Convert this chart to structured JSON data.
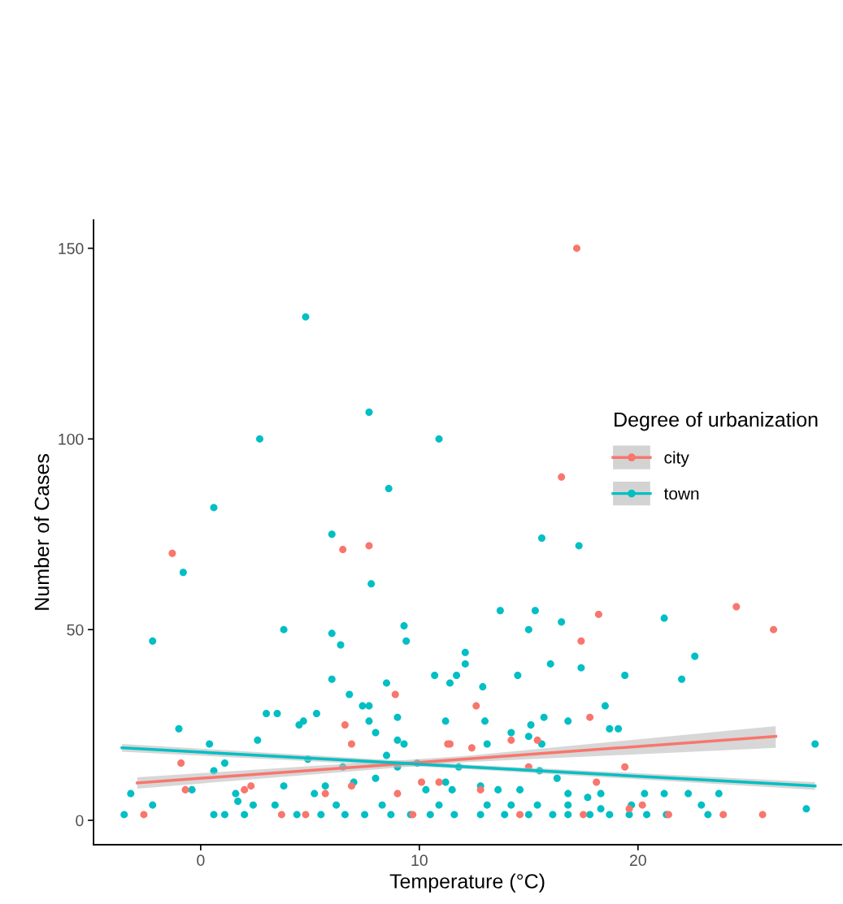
{
  "chart_data": {
    "type": "scatter",
    "xlabel": "Temperature (°C)",
    "ylabel": "Number of Cases",
    "legend_title": "Degree of urbanization",
    "legend": "right",
    "grid": false,
    "xlim": [
      -4.9,
      29.3
    ],
    "ylim": [
      -6.4,
      157.4
    ],
    "xticks": [
      0,
      10,
      20
    ],
    "yticks": [
      0,
      50,
      100,
      150
    ],
    "series": [
      {
        "name": "city",
        "marker": "circle",
        "color": "#f8766d",
        "x": [
          17.2,
          16.5,
          -1.3,
          6.5,
          7.7,
          24.5,
          26.2,
          18.2,
          17.4,
          8.9,
          12.6,
          17.8,
          6.6,
          6.9,
          11.3,
          11.4,
          15.4,
          14.2,
          12.4,
          19.4,
          -0.9,
          -0.7,
          2.0,
          2.3,
          6.9,
          5.7,
          9.0,
          10.1,
          10.9,
          12.8,
          15.0,
          18.1,
          21.4,
          23.9,
          25.7,
          -2.6,
          3.7,
          4.8,
          9.7,
          14.6,
          17.5,
          19.6,
          20.2
        ],
        "values": [
          150,
          90,
          70,
          71,
          72,
          56,
          50,
          54,
          47,
          33,
          30,
          27,
          25,
          20,
          20,
          20,
          21,
          21,
          19,
          14,
          15,
          8,
          8,
          9,
          9,
          7,
          7,
          10,
          10,
          8,
          14,
          10,
          1.5,
          1.5,
          1.5,
          1.5,
          1.5,
          1.5,
          1.5,
          1.5,
          1.5,
          3,
          4
        ]
      },
      {
        "name": "town",
        "marker": "circle",
        "color": "#00bfc4",
        "x": [
          4.8,
          7.7,
          10.9,
          2.7,
          8.6,
          0.6,
          6.0,
          7.8,
          -0.8,
          -2.2,
          3.8,
          9.3,
          9.4,
          6.0,
          6.4,
          15.6,
          17.3,
          13.7,
          15.3,
          15.0,
          16.5,
          21.2,
          22.6,
          16.0,
          17.4,
          12.1,
          12.1,
          6.0,
          22.0,
          19.4,
          10.7,
          11.7,
          11.4,
          12.9,
          14.5,
          8.5,
          6.8,
          3.0,
          3.5,
          5.3,
          4.7,
          7.4,
          7.7,
          7.7,
          8.0,
          11.2,
          13.0,
          16.8,
          15.7,
          18.5,
          15.1,
          13.1,
          19.1,
          18.7,
          9.0,
          2.6,
          0.4,
          -1.0,
          4.5,
          28.1,
          14.2,
          15.6,
          15.0,
          9.0,
          9.3,
          8.5,
          11.8,
          6.5,
          4.9,
          1.1,
          0.6,
          -3.2,
          -0.4,
          1.6,
          -2.2,
          -3.5,
          27.7,
          22.9,
          22.3,
          23.7,
          23.2,
          21.2,
          20.3,
          20.4,
          19.7,
          18.3,
          18.3,
          17.7,
          16.8,
          16.3,
          15.5,
          14.6,
          13.6,
          12.8,
          11.5,
          11.2,
          10.3,
          9.9,
          9.0,
          8.0,
          7.0,
          5.7,
          5.2,
          3.8,
          3.4,
          2.4,
          1.7,
          1.1,
          0.6,
          2.0,
          4.4,
          5.5,
          6.6,
          7.5,
          8.7,
          9.6,
          10.5,
          11.6,
          12.8,
          13.9,
          15.0,
          16.1,
          16.8,
          17.8,
          18.7,
          19.6,
          21.3,
          6.2,
          8.3,
          10.9,
          13.1,
          14.2,
          15.4,
          16.8
        ],
        "values": [
          132,
          107,
          100,
          100,
          87,
          82,
          75,
          62,
          65,
          47,
          50,
          51,
          47,
          49,
          46,
          74,
          72,
          55,
          55,
          50,
          52,
          53,
          43,
          41,
          40,
          44,
          41,
          37,
          37,
          38,
          38,
          38,
          36,
          35,
          38,
          36,
          33,
          28,
          28,
          28,
          26,
          30,
          30,
          26,
          23,
          26,
          26,
          26,
          27,
          30,
          25,
          20,
          24,
          24,
          27,
          21,
          20,
          24,
          25,
          20,
          23,
          20,
          22,
          21,
          20,
          17,
          14,
          14,
          16,
          15,
          13,
          7,
          8,
          7,
          4,
          1.5,
          3,
          4,
          7,
          7,
          1.5,
          7,
          7,
          1.5,
          4,
          7,
          3,
          6,
          7,
          11,
          13,
          8,
          8,
          9,
          8,
          10,
          8,
          15,
          14,
          11,
          10,
          9,
          7,
          9,
          4,
          4,
          5,
          1.5,
          1.5,
          1.5,
          1.5,
          1.5,
          1.5,
          1.5,
          1.5,
          1.5,
          1.5,
          1.5,
          1.5,
          1.5,
          1.5,
          1.5,
          1.5,
          1.5,
          1.5,
          1.5,
          1.5,
          4,
          4,
          4,
          4,
          4,
          4,
          4
        ]
      },
      {
        "type": "line",
        "marker": "none",
        "color": "#f8766d",
        "x": [
          -2.9,
          12,
          26.3
        ],
        "values": [
          9.8,
          16.0,
          22
        ],
        "lower": [
          8.3,
          15.2,
          19
        ],
        "upper": [
          11.3,
          16.8,
          24.7
        ]
      },
      {
        "type": "line",
        "marker": "none",
        "color": "#00bfc4",
        "x": [
          -3.6,
          12.25,
          28.1
        ],
        "values": [
          19,
          14,
          9
        ],
        "lower": [
          18,
          13.4,
          8
        ],
        "upper": [
          20,
          14.6,
          10
        ]
      }
    ]
  }
}
